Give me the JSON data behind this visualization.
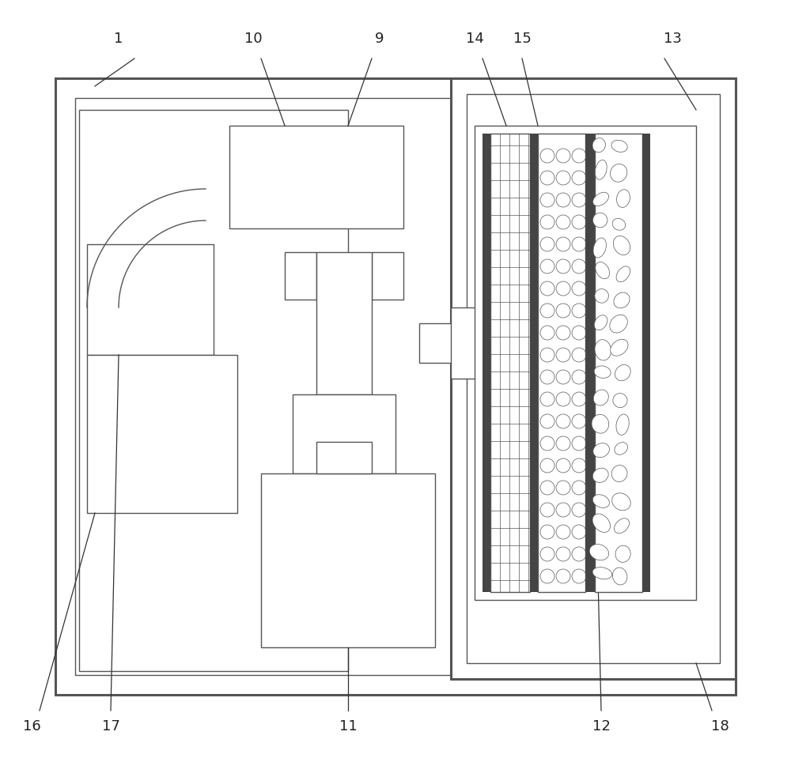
{
  "bg_color": "#ffffff",
  "line_color": "#555555",
  "lw_thick": 2.2,
  "lw_med": 1.5,
  "lw_thin": 1.0,
  "lw_pat": 0.6,
  "label_fs": 13,
  "label_color": "#222222"
}
